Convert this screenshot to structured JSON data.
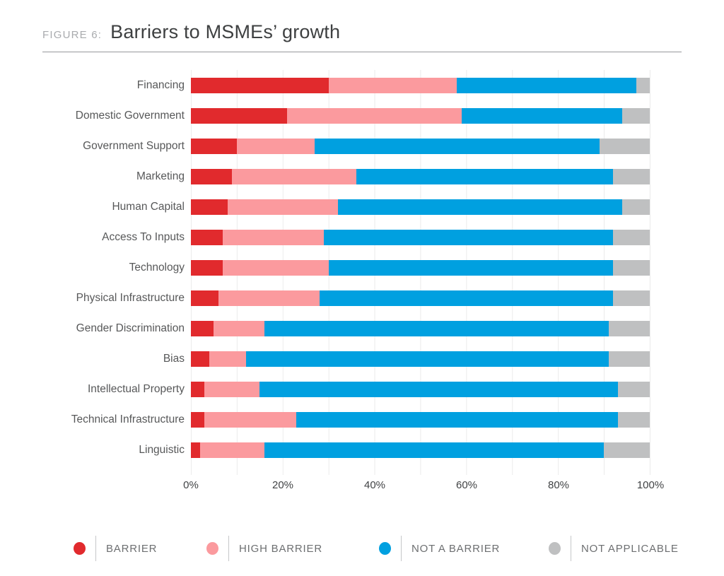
{
  "header": {
    "figure_label": "FIGURE 6:",
    "title": "Barriers to MSMEs’ growth"
  },
  "chart_data": {
    "type": "bar",
    "orientation": "horizontal",
    "stacked": true,
    "unit": "percent",
    "xlim": [
      0,
      100
    ],
    "x_ticks": [
      "0%",
      "20%",
      "40%",
      "60%",
      "80%",
      "100%"
    ],
    "grid": "vertical-lines-every-10pct",
    "legend_position": "bottom",
    "categories": [
      "Financing",
      "Domestic Government",
      "Government Support",
      "Marketing",
      "Human Capital",
      "Access To Inputs",
      "Technology",
      "Physical Infrastructure",
      "Gender Discrimination",
      "Bias",
      "Intellectual Property",
      "Technical Infrastructure",
      "Linguistic"
    ],
    "series": [
      {
        "key": "barrier",
        "name": "BARRIER",
        "color": "#e12a2d",
        "values": [
          30,
          21,
          10,
          9,
          8,
          7,
          7,
          6,
          5,
          4,
          3,
          3,
          2
        ]
      },
      {
        "key": "high-barrier",
        "name": "HIGH BARRIER",
        "color": "#fb9a9e",
        "values": [
          28,
          38,
          17,
          27,
          24,
          22,
          23,
          22,
          11,
          8,
          12,
          20,
          14
        ]
      },
      {
        "key": "not-a-barrier",
        "name": "NOT A BARRIER",
        "color": "#00a0e0",
        "values": [
          39,
          35,
          62,
          56,
          62,
          63,
          62,
          64,
          75,
          79,
          78,
          70,
          74
        ]
      },
      {
        "key": "not-applicable",
        "name": "NOT APPLICABLE",
        "color": "#bfc0c1",
        "values": [
          3,
          6,
          11,
          8,
          6,
          8,
          8,
          8,
          9,
          9,
          7,
          7,
          10
        ]
      }
    ]
  }
}
